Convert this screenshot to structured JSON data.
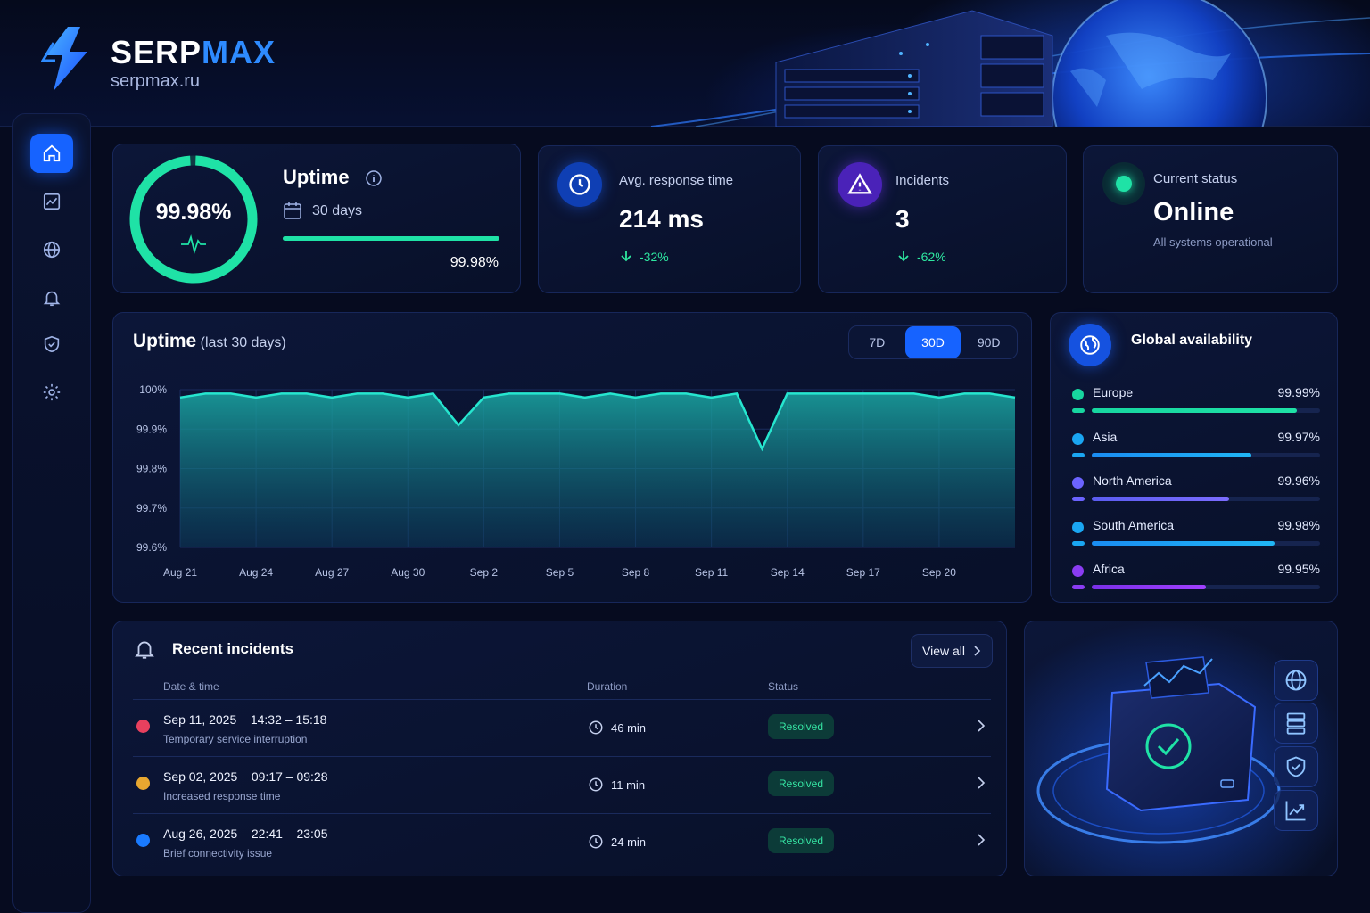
{
  "brand": {
    "name_part1": "SERP",
    "name_part2": "MAX",
    "domain": "serpmax.ru"
  },
  "colors": {
    "accent": "#1663ff",
    "success": "#2ee6a0",
    "teal": "#27d9c4",
    "bg": "#060b1f"
  },
  "sidebar": {
    "items": [
      {
        "icon": "home-icon",
        "active": true
      },
      {
        "icon": "chart-icon",
        "active": false
      },
      {
        "icon": "globe-icon",
        "active": false
      },
      {
        "icon": "bell-icon",
        "active": false
      },
      {
        "icon": "shield-icon",
        "active": false
      },
      {
        "icon": "gear-icon",
        "active": false
      }
    ]
  },
  "uptime_card": {
    "ring_value": "99.98%",
    "ring_fraction": 0.9998,
    "title": "Uptime",
    "period": "30 days",
    "bar_value": "99.98%",
    "bar_fraction": 0.9998
  },
  "response_card": {
    "title": "Avg. response time",
    "value": "214 ms",
    "change": "-32%"
  },
  "incidents_card": {
    "title": "Incidents",
    "value": "3",
    "change": "-62%"
  },
  "status_card": {
    "title": "Current status",
    "value": "Online",
    "sub": "All systems operational"
  },
  "uptime_chart": {
    "title": "Uptime",
    "subtitle": "(last 30 days)",
    "tabs": [
      "7D",
      "30D",
      "90D"
    ],
    "active_tab": "30D"
  },
  "chart_data": {
    "type": "area",
    "title": "Uptime",
    "subtitle": "(last 30 days)",
    "xlabel": "",
    "ylabel": "",
    "ylim": [
      99.6,
      100.0
    ],
    "y_ticks": [
      "100%",
      "99.9%",
      "99.8%",
      "99.7%",
      "99.6%"
    ],
    "x_ticks": [
      "Aug 21",
      "Aug 24",
      "Aug 27",
      "Aug 30",
      "Sep 2",
      "Sep 5",
      "Sep 8",
      "Sep 11",
      "Sep 14",
      "Sep 17",
      "Sep 20"
    ],
    "grid": true,
    "series": [
      {
        "x": [
          "Aug 21",
          "Aug 22",
          "Aug 23",
          "Aug 24",
          "Aug 25",
          "Aug 26",
          "Aug 27",
          "Aug 28",
          "Aug 29",
          "Aug 30",
          "Aug 31",
          "Sep 1",
          "Sep 2",
          "Sep 3",
          "Sep 4",
          "Sep 5",
          "Sep 6",
          "Sep 7",
          "Sep 8",
          "Sep 9",
          "Sep 10",
          "Sep 11",
          "Sep 12",
          "Sep 13",
          "Sep 14",
          "Sep 15",
          "Sep 16",
          "Sep 17",
          "Sep 18",
          "Sep 19",
          "Sep 20",
          "Sep 21",
          "Sep 22",
          "Sep 23"
        ],
        "values": [
          99.98,
          99.99,
          99.99,
          99.98,
          99.99,
          99.99,
          99.98,
          99.99,
          99.99,
          99.98,
          99.99,
          99.91,
          99.98,
          99.99,
          99.99,
          99.99,
          99.98,
          99.99,
          99.98,
          99.99,
          99.99,
          99.98,
          99.99,
          99.85,
          99.99,
          99.99,
          99.99,
          99.99,
          99.99,
          99.99,
          99.98,
          99.99,
          99.99,
          99.98
        ]
      }
    ]
  },
  "global": {
    "title": "Global availability",
    "regions": [
      {
        "name": "Europe",
        "pct": "99.99%",
        "color": "#17d6a0",
        "fraction": 0.9999
      },
      {
        "name": "Asia",
        "pct": "99.97%",
        "color": "#1aa6f2",
        "fraction": 0.9997
      },
      {
        "name": "North America",
        "pct": "99.96%",
        "color": "#6b63ff",
        "fraction": 0.9996
      },
      {
        "name": "South America",
        "pct": "99.98%",
        "color": "#1aa6f2",
        "fraction": 0.9998
      },
      {
        "name": "Africa",
        "pct": "99.95%",
        "color": "#8a3cf2",
        "fraction": 0.9995
      }
    ]
  },
  "incidents": {
    "title": "Recent incidents",
    "view_all": "View all",
    "headers": {
      "date": "Date & time",
      "duration": "Duration",
      "status": "Status"
    },
    "rows": [
      {
        "when": "Sep 11, 2025    14:32 – 15:18",
        "desc": "Temporary service interruption",
        "duration": "46 min",
        "status": "Resolved",
        "color": "#e8405e"
      },
      {
        "when": "Sep 02, 2025    09:17 – 09:28",
        "desc": "Increased response time",
        "duration": "11 min",
        "status": "Resolved",
        "color": "#e8a730"
      },
      {
        "when": "Aug 26, 2025    22:41 – 23:05",
        "desc": "Brief connectivity issue",
        "duration": "24 min",
        "status": "Resolved",
        "color": "#1a7bff"
      }
    ]
  },
  "illustration": {
    "side_icons": [
      "globe-icon",
      "server-icon",
      "shield-icon",
      "chart-icon"
    ]
  }
}
